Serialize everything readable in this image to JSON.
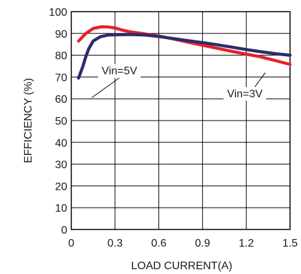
{
  "chart_data": {
    "type": "line",
    "title": "",
    "xlabel": "LOAD CURRENT(A)",
    "ylabel": "EFFICIENCY (%)",
    "xlim": [
      0,
      1.5
    ],
    "ylim": [
      0,
      100
    ],
    "xticks": [
      "0",
      "0.3",
      "0.6",
      "0.9",
      "1.2",
      "1.5"
    ],
    "yticks": [
      "0",
      "10",
      "20",
      "30",
      "40",
      "50",
      "60",
      "70",
      "80",
      "90",
      "100"
    ],
    "grid": true,
    "series": [
      {
        "name": "Vin=3V",
        "color": "#e8202a",
        "x": [
          0.05,
          0.1,
          0.15,
          0.2,
          0.25,
          0.3,
          0.35,
          0.4,
          0.5,
          0.6,
          0.7,
          0.8,
          0.9,
          1.0,
          1.1,
          1.2,
          1.3,
          1.4,
          1.5
        ],
        "y": [
          86.5,
          90.0,
          92.3,
          93.0,
          93.0,
          92.5,
          91.5,
          90.8,
          89.8,
          88.8,
          87.5,
          86.0,
          84.6,
          83.2,
          81.8,
          80.5,
          79.2,
          77.5,
          75.8
        ]
      },
      {
        "name": "Vin=5V",
        "color": "#2b2d6b",
        "x": [
          0.05,
          0.08,
          0.1,
          0.12,
          0.15,
          0.2,
          0.25,
          0.3,
          0.4,
          0.5,
          0.6,
          0.7,
          0.8,
          0.9,
          1.0,
          1.1,
          1.2,
          1.3,
          1.4,
          1.5
        ],
        "y": [
          69.5,
          75.0,
          79.5,
          83.0,
          86.5,
          88.5,
          89.2,
          89.4,
          89.5,
          89.3,
          88.6,
          87.6,
          86.7,
          85.8,
          84.8,
          83.7,
          82.6,
          81.6,
          80.7,
          80.0
        ]
      }
    ],
    "annotations": [
      {
        "text": "Vin=5V",
        "x": 0.33,
        "y": 71.5,
        "pointer_to": [
          0.14,
          60.5
        ]
      },
      {
        "text": "Vin=3V",
        "x": 1.19,
        "y": 61.0,
        "pointer_to": [
          1.33,
          72.0
        ]
      }
    ]
  }
}
